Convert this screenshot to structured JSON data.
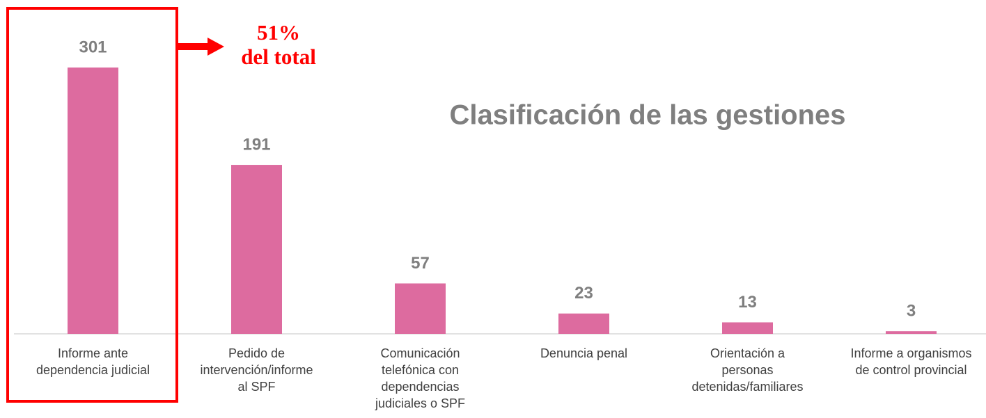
{
  "chart_data": {
    "type": "bar",
    "title": "Clasificación de las gestiones",
    "categories": [
      "Informe ante dependencia judicial",
      "Pedido de intervención/informe al SPF",
      "Comunicación telefónica con dependencias judiciales o SPF",
      "Denuncia penal",
      "Orientación a personas detenidas/familiares",
      "Informe a organismos de control provincial"
    ],
    "values": [
      301,
      191,
      57,
      23,
      13,
      3
    ],
    "color": "#dd6b9f",
    "annotations": [
      "51%",
      "del total"
    ]
  }
}
